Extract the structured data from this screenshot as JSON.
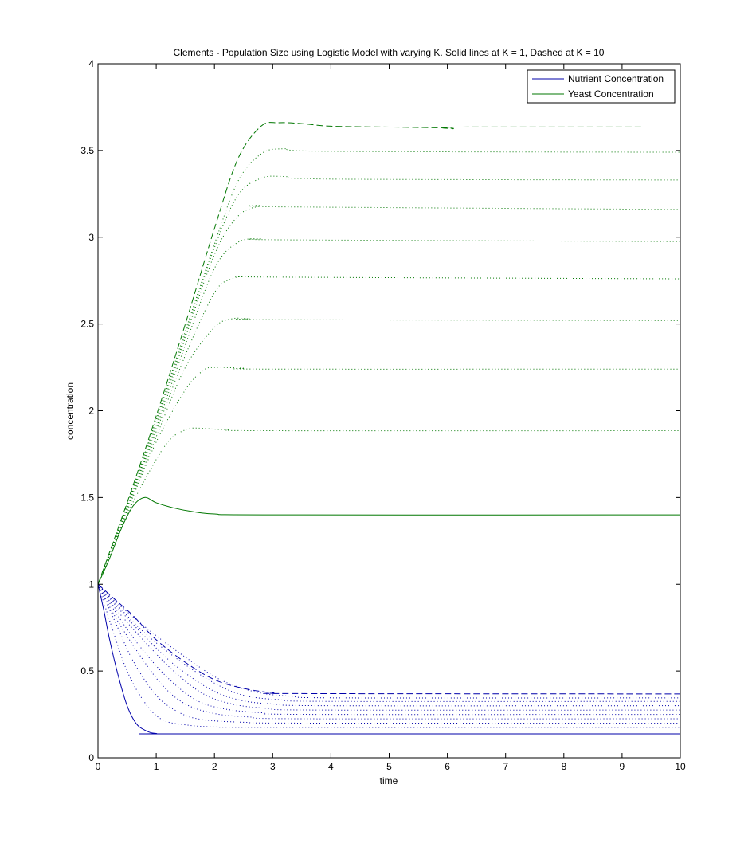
{
  "chart_data": {
    "type": "line",
    "title": "Clements - Population Size using Logistic Model with varying K. Solid lines at K = 1, Dashed at K = 10",
    "xlabel": "time",
    "ylabel": "concentration",
    "xlim": [
      0,
      10
    ],
    "ylim": [
      0,
      4
    ],
    "xticks": [
      "0",
      "1",
      "2",
      "3",
      "4",
      "5",
      "6",
      "7",
      "8",
      "9",
      "10"
    ],
    "yticks": [
      "0",
      "0.5",
      "1",
      "1.5",
      "2",
      "2.5",
      "3",
      "3.5",
      "4"
    ],
    "grid": false,
    "legend": {
      "position": "top-right",
      "entries": [
        {
          "label": "Nutrient Concentration",
          "color": "#0000aa"
        },
        {
          "label": "Yeast Concentration",
          "color": "#007700"
        }
      ]
    },
    "colors": {
      "nutrient": "#0000aa",
      "yeast": "#007700"
    },
    "series": [
      {
        "group": "yeast",
        "style": "solid",
        "values": [
          [
            0,
            1.0
          ],
          [
            0.2,
            1.15
          ],
          [
            0.4,
            1.32
          ],
          [
            0.6,
            1.45
          ],
          [
            0.8,
            1.5
          ],
          [
            1.0,
            1.47
          ],
          [
            1.3,
            1.44
          ],
          [
            1.6,
            1.42
          ],
          [
            2.0,
            1.405
          ],
          [
            3.0,
            1.4
          ],
          [
            10,
            1.4
          ]
        ]
      },
      {
        "group": "yeast",
        "style": "dotted",
        "values": [
          [
            0,
            1.0
          ],
          [
            0.4,
            1.33
          ],
          [
            0.8,
            1.6
          ],
          [
            1.2,
            1.82
          ],
          [
            1.5,
            1.89
          ],
          [
            1.7,
            1.9
          ],
          [
            2.2,
            1.89
          ],
          [
            3.0,
            1.885
          ],
          [
            10,
            1.885
          ]
        ]
      },
      {
        "group": "yeast",
        "style": "dotted",
        "values": [
          [
            0,
            1.0
          ],
          [
            0.5,
            1.42
          ],
          [
            1.0,
            1.82
          ],
          [
            1.5,
            2.12
          ],
          [
            1.8,
            2.23
          ],
          [
            2.0,
            2.25
          ],
          [
            2.5,
            2.245
          ],
          [
            3.0,
            2.24
          ],
          [
            10,
            2.24
          ]
        ]
      },
      {
        "group": "yeast",
        "style": "dotted",
        "values": [
          [
            0,
            1.0
          ],
          [
            0.5,
            1.43
          ],
          [
            1.0,
            1.85
          ],
          [
            1.5,
            2.25
          ],
          [
            2.0,
            2.48
          ],
          [
            2.3,
            2.53
          ],
          [
            2.6,
            2.53
          ],
          [
            3.0,
            2.525
          ],
          [
            10,
            2.52
          ]
        ]
      },
      {
        "group": "yeast",
        "style": "dotted",
        "values": [
          [
            0,
            1.0
          ],
          [
            0.5,
            1.44
          ],
          [
            1.0,
            1.88
          ],
          [
            1.5,
            2.32
          ],
          [
            2.0,
            2.68
          ],
          [
            2.3,
            2.76
          ],
          [
            2.6,
            2.775
          ],
          [
            3.0,
            2.77
          ],
          [
            10,
            2.76
          ]
        ]
      },
      {
        "group": "yeast",
        "style": "dotted",
        "values": [
          [
            0,
            1.0
          ],
          [
            0.5,
            1.45
          ],
          [
            1.0,
            1.9
          ],
          [
            1.5,
            2.38
          ],
          [
            2.0,
            2.82
          ],
          [
            2.4,
            2.97
          ],
          [
            2.8,
            2.99
          ],
          [
            3.2,
            2.985
          ],
          [
            10,
            2.975
          ]
        ]
      },
      {
        "group": "yeast",
        "style": "dotted",
        "values": [
          [
            0,
            1.0
          ],
          [
            0.5,
            1.45
          ],
          [
            1.0,
            1.92
          ],
          [
            1.5,
            2.42
          ],
          [
            2.0,
            2.9
          ],
          [
            2.4,
            3.12
          ],
          [
            2.8,
            3.18
          ],
          [
            3.2,
            3.175
          ],
          [
            10,
            3.16
          ]
        ]
      },
      {
        "group": "yeast",
        "style": "dotted",
        "values": [
          [
            0,
            1.0
          ],
          [
            0.5,
            1.46
          ],
          [
            1.0,
            1.94
          ],
          [
            1.5,
            2.44
          ],
          [
            2.0,
            2.94
          ],
          [
            2.4,
            3.24
          ],
          [
            2.8,
            3.34
          ],
          [
            3.2,
            3.35
          ],
          [
            4.0,
            3.335
          ],
          [
            10,
            3.33
          ]
        ]
      },
      {
        "group": "yeast",
        "style": "dotted",
        "values": [
          [
            0,
            1.0
          ],
          [
            0.5,
            1.46
          ],
          [
            1.0,
            1.95
          ],
          [
            1.5,
            2.46
          ],
          [
            2.0,
            2.96
          ],
          [
            2.4,
            3.32
          ],
          [
            2.8,
            3.48
          ],
          [
            3.2,
            3.51
          ],
          [
            4.0,
            3.495
          ],
          [
            10,
            3.49
          ]
        ]
      },
      {
        "group": "yeast",
        "style": "dashed",
        "values": [
          [
            0,
            1.0
          ],
          [
            0.5,
            1.47
          ],
          [
            1.0,
            1.97
          ],
          [
            1.5,
            2.5
          ],
          [
            2.0,
            3.05
          ],
          [
            2.4,
            3.45
          ],
          [
            2.8,
            3.64
          ],
          [
            3.1,
            3.66
          ],
          [
            3.5,
            3.655
          ],
          [
            4.0,
            3.64
          ],
          [
            5.0,
            3.635
          ],
          [
            6.0,
            3.63
          ],
          [
            6.1,
            3.625
          ],
          [
            6.2,
            3.635
          ],
          [
            10,
            3.635
          ]
        ]
      },
      {
        "group": "nutrient",
        "style": "solid",
        "values": [
          [
            0,
            1.0
          ],
          [
            0.1,
            0.85
          ],
          [
            0.2,
            0.68
          ],
          [
            0.35,
            0.47
          ],
          [
            0.5,
            0.3
          ],
          [
            0.65,
            0.2
          ],
          [
            0.8,
            0.16
          ],
          [
            1.0,
            0.14
          ],
          [
            1.5,
            0.138
          ],
          [
            10,
            0.138
          ]
        ]
      },
      {
        "group": "nutrient",
        "style": "dotted",
        "values": [
          [
            0,
            1.0
          ],
          [
            0.25,
            0.74
          ],
          [
            0.5,
            0.5
          ],
          [
            0.8,
            0.32
          ],
          [
            1.1,
            0.22
          ],
          [
            1.5,
            0.19
          ],
          [
            2.0,
            0.178
          ],
          [
            3.0,
            0.175
          ],
          [
            10,
            0.175
          ]
        ]
      },
      {
        "group": "nutrient",
        "style": "dotted",
        "values": [
          [
            0,
            1.0
          ],
          [
            0.3,
            0.78
          ],
          [
            0.6,
            0.56
          ],
          [
            1.0,
            0.36
          ],
          [
            1.4,
            0.26
          ],
          [
            1.8,
            0.22
          ],
          [
            2.5,
            0.205
          ],
          [
            3.5,
            0.2
          ],
          [
            10,
            0.2
          ]
        ]
      },
      {
        "group": "nutrient",
        "style": "dotted",
        "values": [
          [
            0,
            1.0
          ],
          [
            0.3,
            0.81
          ],
          [
            0.7,
            0.6
          ],
          [
            1.1,
            0.42
          ],
          [
            1.5,
            0.31
          ],
          [
            2.0,
            0.255
          ],
          [
            2.6,
            0.235
          ],
          [
            3.5,
            0.225
          ],
          [
            10,
            0.225
          ]
        ]
      },
      {
        "group": "nutrient",
        "style": "dotted",
        "values": [
          [
            0,
            1.0
          ],
          [
            0.3,
            0.84
          ],
          [
            0.7,
            0.65
          ],
          [
            1.2,
            0.46
          ],
          [
            1.7,
            0.33
          ],
          [
            2.2,
            0.28
          ],
          [
            2.8,
            0.26
          ],
          [
            3.6,
            0.25
          ],
          [
            10,
            0.25
          ]
        ]
      },
      {
        "group": "nutrient",
        "style": "dotted",
        "values": [
          [
            0,
            1.0
          ],
          [
            0.3,
            0.86
          ],
          [
            0.8,
            0.67
          ],
          [
            1.3,
            0.5
          ],
          [
            1.8,
            0.37
          ],
          [
            2.3,
            0.31
          ],
          [
            2.9,
            0.285
          ],
          [
            3.8,
            0.275
          ],
          [
            10,
            0.275
          ]
        ]
      },
      {
        "group": "nutrient",
        "style": "dotted",
        "values": [
          [
            0,
            1.0
          ],
          [
            0.3,
            0.88
          ],
          [
            0.8,
            0.7
          ],
          [
            1.3,
            0.54
          ],
          [
            1.9,
            0.4
          ],
          [
            2.4,
            0.335
          ],
          [
            3.0,
            0.31
          ],
          [
            4.0,
            0.3
          ],
          [
            10,
            0.3
          ]
        ]
      },
      {
        "group": "nutrient",
        "style": "dotted",
        "values": [
          [
            0,
            1.0
          ],
          [
            0.3,
            0.89
          ],
          [
            0.8,
            0.72
          ],
          [
            1.4,
            0.56
          ],
          [
            2.0,
            0.43
          ],
          [
            2.5,
            0.36
          ],
          [
            3.1,
            0.335
          ],
          [
            4.0,
            0.325
          ],
          [
            10,
            0.325
          ]
        ]
      },
      {
        "group": "nutrient",
        "style": "dotted",
        "values": [
          [
            0,
            1.0
          ],
          [
            0.3,
            0.9
          ],
          [
            0.9,
            0.73
          ],
          [
            1.5,
            0.58
          ],
          [
            2.1,
            0.45
          ],
          [
            2.7,
            0.38
          ],
          [
            3.3,
            0.355
          ],
          [
            4.2,
            0.345
          ],
          [
            10,
            0.345
          ]
        ]
      },
      {
        "group": "nutrient",
        "style": "dashed",
        "values": [
          [
            0,
            1.0
          ],
          [
            0.3,
            0.91
          ],
          [
            0.6,
            0.82
          ],
          [
            1.0,
            0.68
          ],
          [
            1.5,
            0.55
          ],
          [
            2.0,
            0.45
          ],
          [
            2.5,
            0.4
          ],
          [
            3.0,
            0.375
          ],
          [
            3.5,
            0.37
          ],
          [
            10,
            0.368
          ]
        ]
      }
    ]
  }
}
